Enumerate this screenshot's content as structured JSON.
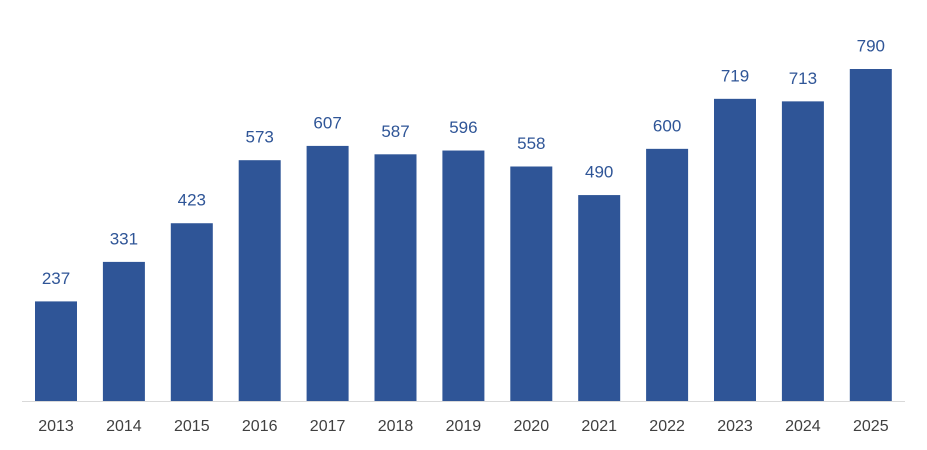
{
  "chart_data": {
    "type": "bar",
    "categories": [
      "2013",
      "2014",
      "2015",
      "2016",
      "2017",
      "2018",
      "2019",
      "2020",
      "2021",
      "2022",
      "2023",
      "2024",
      "2025"
    ],
    "values": [
      237,
      331,
      423,
      573,
      607,
      587,
      596,
      558,
      490,
      600,
      719,
      713,
      790
    ],
    "color": "#2f5597"
  }
}
